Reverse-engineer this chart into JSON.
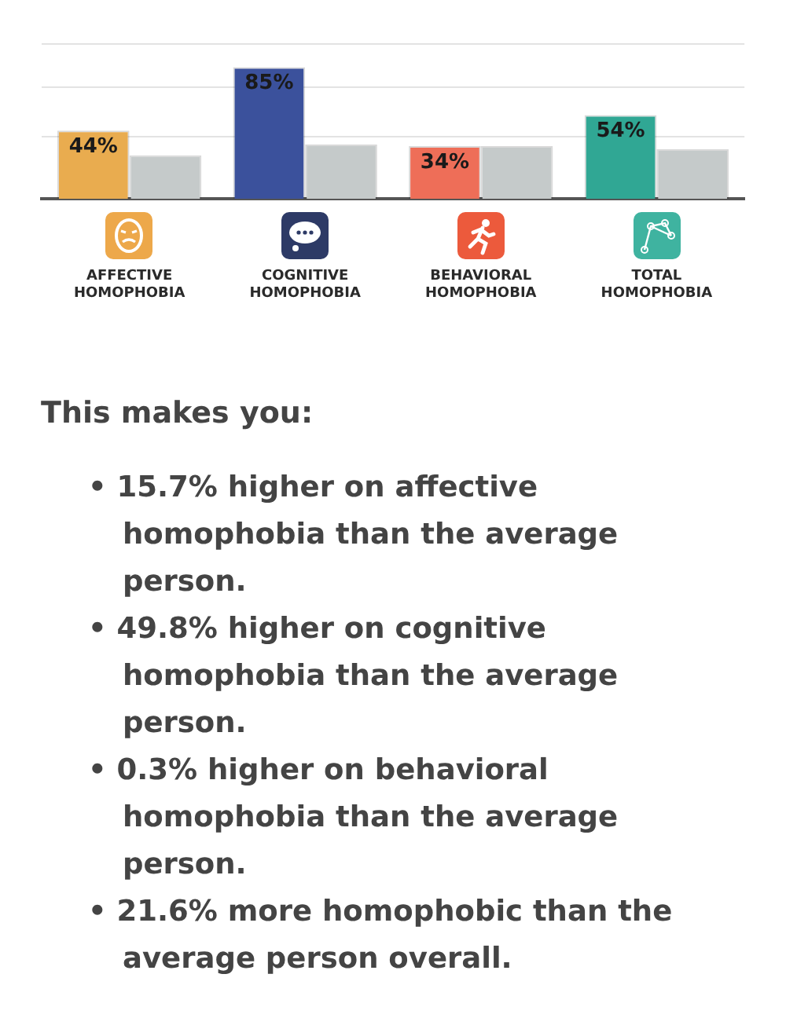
{
  "chart_data": {
    "type": "bar",
    "categories": [
      "AFFECTIVE HOMOPHOBIA",
      "COGNITIVE HOMOPHOBIA",
      "BEHAVIORAL HOMOPHOBIA",
      "TOTAL HOMOPHOBIA"
    ],
    "series": [
      {
        "colors": [
          "#e9ac4f",
          "#3b519c",
          "#ee6e58",
          "#30a794"
        ],
        "values": [
          44,
          85,
          34,
          54
        ],
        "value_labels": [
          "44%",
          "85%",
          "34%",
          "54%"
        ]
      },
      {
        "color": "#c5caca",
        "values": [
          28,
          35,
          34,
          32
        ]
      }
    ],
    "ylim": [
      0,
      100
    ],
    "yticks": [
      {
        "value": 40,
        "label": null
      },
      {
        "value": 72,
        "label": null
      },
      {
        "value": 100,
        "label": null
      }
    ],
    "grid": "y",
    "tick_labels": "x",
    "legend": false,
    "annotations": [
      "This makes you:",
      "• 15.7% higher on affective homophobia than the average person.",
      "• 49.8% higher on cognitive homophobia than the average person.",
      "• 0.3% higher on behavioral homophobia than the average person.",
      "• 21.6% more homophobic than the average person overall."
    ]
  }
}
